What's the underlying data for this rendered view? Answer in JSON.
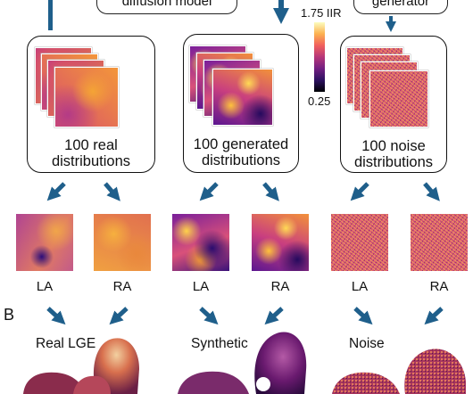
{
  "top": {
    "diffusion_label": "diffusion model",
    "generator_label": "generator"
  },
  "colorbar": {
    "max_label": "1.75 IIR",
    "min_label": "0.25"
  },
  "groups": [
    {
      "line1": "100 real",
      "line2": "distributions"
    },
    {
      "line1": "100 generated",
      "line2": "distributions"
    },
    {
      "line1": "100 noise",
      "line2": "distributions"
    }
  ],
  "maps": [
    {
      "label": "LA"
    },
    {
      "label": "RA"
    },
    {
      "label": "LA"
    },
    {
      "label": "RA"
    },
    {
      "label": "LA"
    },
    {
      "label": "RA"
    }
  ],
  "panel_b": {
    "letter": "B",
    "headers": [
      "Real LGE",
      "Synthetic",
      "Noise"
    ]
  },
  "colors": {
    "arrow": "#1f5f8b",
    "border": "#111111"
  }
}
